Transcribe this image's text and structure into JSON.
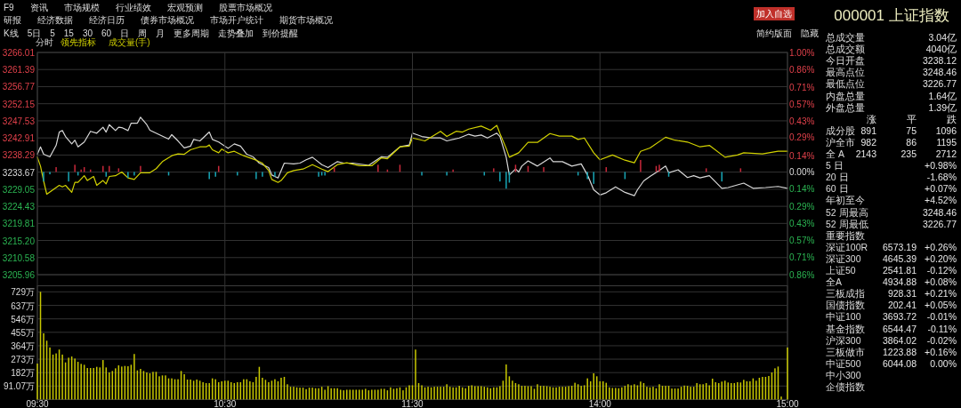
{
  "chart_data": [
    {
      "type": "other",
      "annotations": [
        "F9\t资讯\t市场规模\t行业绩效\t宏观预测\t股票市场概况",
        "研报\t经济数据\t经济日历\t债券市场概况\t市场开户统计\t期货市场概况",
        "K线\t5日\t5\t15\t30\t60\t日\t周\t月\t更多周期\t走势叠加\t到价提醒",
        "简约版面\t隐藏",
        "加入自选"
      ]
    },
    {
      "type": "line",
      "categories": [
        null,
        null,
        null,
        null,
        null,
        null,
        null,
        null,
        null,
        null,
        null,
        null,
        null,
        null,
        null,
        null,
        null,
        null,
        null,
        null,
        null,
        null,
        null,
        null,
        null,
        null,
        null,
        null,
        null,
        null,
        null,
        null,
        null,
        null,
        null,
        null,
        null,
        null,
        null,
        null,
        null,
        null,
        null,
        null,
        null,
        null,
        null,
        null,
        null,
        null,
        null,
        null,
        null,
        null,
        null,
        null,
        null,
        null,
        null,
        null,
        null,
        null,
        null,
        null,
        null,
        null,
        null,
        null,
        null,
        null,
        null,
        null,
        null,
        null,
        null,
        null,
        null,
        null,
        null,
        null,
        null,
        null,
        null,
        null,
        null,
        null,
        null,
        null,
        null,
        null,
        null,
        null,
        null,
        null,
        null,
        null,
        null,
        null,
        null,
        null,
        null,
        null,
        null,
        null,
        null,
        null,
        null,
        null,
        null,
        null,
        null,
        null,
        null,
        null,
        null,
        null,
        null,
        null,
        null,
        null,
        null,
        null,
        null,
        null,
        null,
        null,
        null,
        null,
        null,
        null,
        null,
        null,
        null,
        null,
        null,
        null,
        null,
        null,
        null,
        null,
        null,
        null,
        null,
        null,
        null,
        null,
        null,
        null,
        null,
        null,
        null,
        null,
        null,
        null,
        null,
        null,
        null,
        null,
        null,
        null,
        null,
        null,
        null,
        null,
        null,
        null,
        null,
        null,
        null,
        null,
        null,
        null,
        null,
        null,
        null,
        null,
        null,
        null,
        null,
        null,
        null,
        null,
        null,
        null,
        null,
        null,
        null,
        null,
        null,
        null,
        null,
        null,
        null,
        null,
        null,
        null,
        null,
        null,
        null,
        null,
        null,
        null,
        null,
        null,
        null,
        null,
        null,
        null,
        null,
        null,
        null,
        null,
        null,
        null,
        null,
        null,
        null,
        null,
        null,
        null,
        null,
        null,
        null,
        null,
        null,
        null,
        null,
        null,
        null,
        null,
        null,
        null,
        null,
        null,
        null,
        null,
        null,
        null,
        null,
        null,
        null
      ],
      "ylim": [
        3205.96,
        3266.01
      ],
      "yticks": [
        3266.01,
        3261.39,
        3256.77,
        3252.15,
        3247.53,
        3242.91,
        3238.29,
        3233.67,
        3229.05,
        3224.43,
        3219.81,
        {
          "value": 3215.2,
          "label": "3215.20"
        },
        3210.58,
        3205.96
      ],
      "y2lim": [
        -0.86,
        1.0
      ],
      "y2ticks": [
        {
          "value": 1.0,
          "label": "1.00%"
        },
        {
          "value": 0.86,
          "label": "0.86%"
        },
        {
          "value": 0.71,
          "label": "0.71%"
        },
        {
          "value": 0.57,
          "label": "0.57%"
        },
        {
          "value": 0.43,
          "label": "0.43%"
        },
        {
          "value": 0.29,
          "label": "0.29%"
        },
        {
          "value": 0.14,
          "label": "0.14%"
        },
        {
          "value": 0,
          "label": "0.00%"
        },
        {
          "value": -0.14,
          "label": "0.14%"
        },
        {
          "value": -0.29,
          "label": "0.29%"
        },
        {
          "value": -0.43,
          "label": "0.43%"
        },
        {
          "value": -0.57,
          "label": "0.57%"
        },
        {
          "value": -0.71,
          "label": "0.71%"
        },
        {
          "value": -0.86,
          "label": "0.86%"
        }
      ],
      "grid": true,
      "legend": "top left",
      "series": [
        {
          "name": "分时",
          "color": "#d8d8d8",
          "values": [
            3238.5,
            3240.5,
            3238.5,
            null,
            3237.8,
            null,
            3240.9,
            3244.5,
            3244.9,
            3243.3,
            null,
            3241.3,
            3242.3,
            3240.5,
            null,
            3241.8,
            null,
            3244.7,
            null,
            3244.2,
            null,
            3245.8,
            3244.5,
            3246.5,
            null,
            3244.9,
            3245.8,
            3245.7,
            null,
            3244.9,
            3246.9,
            null,
            3246.9,
            3248.5,
            null,
            3246.5,
            3245.0,
            null,
            null,
            3243.8,
            null,
            null,
            3242.6,
            3243.8,
            null,
            3242.1,
            null,
            3240.2,
            null,
            3240.7,
            3242.5,
            null,
            3242.1,
            3242.9,
            null,
            3244.5,
            3242.5,
            null,
            3241.8,
            null,
            null,
            3240.1,
            null,
            3241.3,
            null,
            3240.7,
            null,
            3238.5,
            null,
            3237.8,
            null,
            3236.1,
            null,
            null,
            3234.9,
            3232.9,
            null,
            3232.1,
            null,
            3236.1,
            null,
            null,
            3235.9,
            null,
            3236.1,
            null,
            3237.0,
            null,
            3237.7,
            null,
            null,
            3235.7,
            null,
            3234.9,
            null,
            null,
            3236.5,
            null,
            3236.1,
            null,
            null,
            3236.1,
            null,
            null,
            null,
            null,
            3235.5,
            null,
            null,
            null,
            3237.8,
            null,
            3237.7,
            null,
            null,
            null,
            3240.5,
            null,
            null,
            3241.0,
            3244.2,
            null,
            null,
            3243.3,
            null,
            null,
            3242.9,
            null,
            null,
            3242.9,
            null,
            3242.1,
            null,
            null,
            null,
            3242.9,
            null,
            null,
            3243.9,
            null,
            3243.4,
            null,
            3243.7,
            null,
            3242.9,
            null,
            null,
            3244.2,
            3243.3,
            null,
            3237.7,
            3232.9,
            null,
            3234.5,
            3233.7,
            3235.3,
            null,
            3236.7,
            null,
            null,
            3235.3,
            null,
            null,
            null,
            3237.5,
            3236.5,
            null,
            null,
            3236.5,
            null,
            null,
            3235.3,
            null,
            null,
            3235.9,
            null,
            3232.9,
            null,
            3228.9,
            null,
            3227.5,
            null,
            3228.1,
            null,
            null,
            3229.7,
            null,
            null,
            3228.2,
            null,
            null,
            3227.3,
            3228.9,
            null,
            3231.3,
            null,
            3232.5,
            null,
            null,
            3234.1,
            null,
            3235.3,
            3233.5,
            null,
            null,
            3234.3,
            null,
            null,
            3232.2,
            null,
            3232.7,
            null,
            3232.1,
            null,
            null,
            3232.7,
            null,
            null,
            null,
            3229.3,
            null,
            3229.5,
            null,
            null,
            null,
            null,
            3230.7,
            null,
            null,
            3229.3,
            null,
            null,
            null,
            3229.5,
            null,
            null,
            null,
            3229.8,
            null,
            null,
            3229.3
          ]
        },
        {
          "name": "领先指标",
          "color": "#d2d200",
          "values": [
            3237.7,
            3235.3,
            3231.3,
            3227.7,
            null,
            3228.9,
            null,
            3230.1,
            3229.7,
            3230.1,
            null,
            3228.2,
            3230.9,
            3230.9,
            null,
            3232.7,
            3231.4,
            null,
            3232.5,
            3230.1,
            null,
            3231.4,
            3230.5,
            3232.5,
            null,
            3232.7,
            null,
            3233.7,
            null,
            3232.1,
            null,
            3231.7,
            null,
            3233.5,
            null,
            null,
            3233.5,
            null,
            3234.6,
            null,
            3236.5,
            null,
            null,
            3238.1,
            null,
            3238.6,
            null,
            3238.5,
            null,
            3239.7,
            null,
            null,
            3240.5,
            null,
            3240.5,
            3241.0,
            3239.7,
            null,
            3238.9,
            3239.9,
            null,
            3238.9,
            null,
            3239.3,
            null,
            null,
            3238.1,
            null,
            null,
            null,
            3236.9,
            null,
            3236.1,
            null,
            3234.1,
            3231.7,
            null,
            3230.9,
            3231.4,
            null,
            3233.5,
            null,
            3234.1,
            null,
            null,
            3234.5,
            null,
            null,
            3235.7,
            null,
            null,
            3234.5,
            null,
            3233.8,
            null,
            null,
            3235.7,
            null,
            null,
            3236.2,
            null,
            null,
            null,
            3235.4,
            null,
            null,
            null,
            3235.4,
            null,
            null,
            3237.5,
            null,
            3237.3,
            null,
            null,
            null,
            3240.5,
            null,
            null,
            3240.7,
            3242.9,
            null,
            null,
            null,
            3242.1,
            null,
            null,
            null,
            null,
            3244.7,
            null,
            3243.3,
            null,
            null,
            3244.7,
            null,
            3244.5,
            null,
            3245.3,
            null,
            null,
            null,
            3246.1,
            null,
            null,
            3245.0,
            null,
            3246.3,
            3244.1,
            null,
            3240.1,
            3237.7,
            null,
            null,
            3238.9,
            null,
            null,
            3241.7,
            null,
            null,
            3241.7,
            null,
            null,
            null,
            3244.1,
            null,
            null,
            3243.4,
            null,
            null,
            null,
            3243.4,
            null,
            3242.5,
            null,
            3242.9,
            null,
            null,
            3238.9,
            null,
            3237.0,
            null,
            null,
            null,
            3238.3,
            null,
            null,
            null,
            3236.9,
            null,
            null,
            3236.2,
            null,
            3239.3,
            null,
            null,
            3240.2,
            null,
            null,
            null,
            null,
            3243.1,
            null,
            null,
            3242.3,
            null,
            null,
            null,
            3241.8,
            null,
            null,
            null,
            3240.5,
            null,
            null,
            3240.9,
            null,
            null,
            null,
            null,
            3237.7,
            null,
            null,
            null,
            3238.3,
            null,
            3238.9,
            null,
            null,
            null,
            null,
            null,
            3238.6,
            null,
            null,
            null,
            null,
            3239.3,
            null,
            null,
            3239.3
          ]
        },
        {
          "type": "bar",
          "axis": "y2",
          "color": "#c8283a",
          "values": [
            null,
            null,
            null,
            null,
            null,
            null,
            0.04,
            null,
            null,
            null,
            null,
            null,
            0.06,
            null,
            0.02,
            0.04,
            null,
            0.02,
            null,
            null,
            null,
            0.05,
            null,
            0.05,
            null,
            null,
            0.03,
            null,
            null,
            null,
            null,
            null,
            null,
            0.05,
            null,
            null,
            null,
            null,
            null,
            null,
            null,
            null,
            null,
            null,
            null,
            null,
            null,
            null,
            null,
            null,
            null,
            null,
            null,
            null,
            null,
            null,
            null,
            null,
            0.05,
            null,
            null,
            null,
            null,
            null,
            null,
            null,
            null,
            null,
            null,
            null,
            null,
            null,
            null,
            null,
            null,
            null,
            null,
            null,
            null,
            null,
            null,
            null,
            null,
            null,
            null,
            null,
            null,
            null,
            null,
            null,
            null,
            null,
            null,
            null,
            null,
            0.04,
            null,
            null,
            null,
            null,
            null,
            null,
            null,
            null,
            null,
            null,
            null,
            null,
            null,
            0.06,
            null,
            null,
            0.02,
            null,
            null,
            null,
            0.06,
            null,
            null,
            null,
            null,
            null,
            null,
            null,
            null,
            null,
            null,
            null,
            null,
            null,
            null,
            null,
            null,
            0.02,
            null,
            null,
            null,
            null,
            null,
            null,
            null,
            null,
            null,
            null,
            null,
            null,
            0.03,
            null,
            null,
            null,
            null,
            null,
            null,
            0.06,
            null,
            null,
            null,
            0.05,
            null,
            null,
            null,
            null,
            0.04,
            null,
            null,
            null,
            null,
            null,
            null,
            null,
            null,
            null,
            null,
            null,
            null,
            null,
            null,
            null,
            null,
            null,
            null,
            null,
            0.04,
            null,
            null,
            null,
            null,
            null,
            null,
            null,
            null,
            null,
            null,
            0.1,
            null,
            null,
            null,
            null,
            0.05,
            0.06,
            null,
            null,
            null,
            null,
            null,
            null,
            null,
            null,
            null,
            null,
            null,
            null,
            null,
            null,
            0.03,
            null,
            null,
            null,
            null,
            null,
            null,
            null,
            null,
            null,
            null,
            0.03,
            null,
            null,
            null,
            null,
            null,
            null,
            null,
            null,
            null,
            null,
            null,
            null,
            null,
            null,
            null
          ]
        },
        {
          "type": "bar",
          "axis": "y2",
          "color": "#17a5b5",
          "values": [
            null,
            null,
            -0.08,
            null,
            -0.02,
            null,
            null,
            null,
            null,
            null,
            -0.08,
            null,
            null,
            -0.03,
            null,
            null,
            null,
            null,
            null,
            null,
            null,
            null,
            -0.04,
            null,
            null,
            null,
            null,
            null,
            null,
            -0.05,
            null,
            -0.03,
            null,
            null,
            null,
            null,
            null,
            null,
            null,
            null,
            null,
            null,
            -0.03,
            null,
            null,
            null,
            null,
            null,
            null,
            null,
            null,
            null,
            null,
            null,
            null,
            -0.06,
            null,
            -0.04,
            null,
            null,
            null,
            null,
            null,
            null,
            -0.03,
            null,
            null,
            null,
            null,
            null,
            -0.06,
            null,
            -0.04,
            null,
            null,
            null,
            -0.04,
            null,
            null,
            null,
            null,
            null,
            null,
            null,
            null,
            null,
            null,
            null,
            null,
            null,
            -0.04,
            -0.03,
            -0.03,
            null,
            null,
            null,
            null,
            null,
            null,
            null,
            null,
            null,
            null,
            null,
            null,
            null,
            null,
            null,
            null,
            null,
            null,
            null,
            null,
            null,
            null,
            null,
            null,
            null,
            null,
            null,
            null,
            null,
            null,
            -0.03,
            null,
            null,
            null,
            null,
            null,
            null,
            null,
            -0.03,
            null,
            null,
            null,
            null,
            null,
            null,
            null,
            null,
            null,
            null,
            null,
            -0.03,
            null,
            null,
            null,
            null,
            -0.08,
            null,
            -0.14,
            -0.09,
            null,
            null,
            null,
            null,
            null,
            null,
            null,
            null,
            null,
            null,
            null,
            null,
            null,
            null,
            null,
            null,
            null,
            null,
            null,
            null,
            null,
            -0.03,
            null,
            null,
            -0.06,
            null,
            -0.1,
            null,
            null,
            null,
            null,
            null,
            null,
            null,
            null,
            null,
            -0.06,
            null,
            null,
            null,
            null,
            null,
            null,
            null,
            null,
            null,
            null,
            null,
            null,
            null,
            -0.04,
            null,
            null,
            null,
            null,
            null,
            null,
            null,
            null,
            null,
            null,
            null,
            null,
            null,
            null,
            null,
            null,
            -0.08,
            null,
            null,
            null,
            null,
            null,
            null,
            null,
            null,
            null,
            null,
            null,
            null,
            null,
            null,
            null,
            null,
            null,
            null,
            null,
            null,
            null
          ]
        }
      ]
    },
    {
      "type": "bar",
      "categories": [
        "09:30",
        null,
        null,
        null,
        null,
        null,
        null,
        null,
        null,
        null,
        null,
        null,
        null,
        null,
        null,
        null,
        null,
        null,
        null,
        null,
        null,
        null,
        null,
        null,
        null,
        null,
        null,
        null,
        null,
        null,
        null,
        null,
        null,
        null,
        null,
        null,
        null,
        null,
        null,
        null,
        null,
        null,
        null,
        null,
        null,
        null,
        null,
        null,
        null,
        null,
        null,
        null,
        null,
        null,
        null,
        null,
        null,
        null,
        null,
        null,
        "10:30",
        null,
        null,
        null,
        null,
        null,
        null,
        null,
        null,
        null,
        null,
        null,
        null,
        null,
        null,
        null,
        null,
        null,
        null,
        null,
        null,
        null,
        null,
        null,
        null,
        null,
        null,
        null,
        null,
        null,
        null,
        null,
        null,
        null,
        null,
        null,
        null,
        null,
        null,
        null,
        null,
        null,
        null,
        null,
        null,
        null,
        null,
        null,
        null,
        null,
        null,
        null,
        null,
        null,
        null,
        null,
        null,
        null,
        null,
        null,
        "11:30",
        null,
        null,
        null,
        null,
        null,
        null,
        null,
        null,
        null,
        null,
        null,
        null,
        null,
        null,
        null,
        null,
        null,
        null,
        null,
        null,
        null,
        null,
        null,
        null,
        null,
        null,
        null,
        null,
        null,
        null,
        null,
        null,
        null,
        null,
        null,
        null,
        null,
        null,
        null,
        null,
        null,
        null,
        null,
        null,
        null,
        null,
        null,
        null,
        null,
        null,
        null,
        null,
        null,
        null,
        null,
        null,
        null,
        null,
        null,
        "14:00",
        null,
        null,
        null,
        null,
        null,
        null,
        null,
        null,
        null,
        null,
        null,
        null,
        null,
        null,
        null,
        null,
        null,
        null,
        null,
        null,
        null,
        null,
        null,
        null,
        null,
        null,
        null,
        null,
        null,
        null,
        null,
        null,
        null,
        null,
        null,
        null,
        null,
        null,
        null,
        null,
        null,
        null,
        null,
        null,
        null,
        null,
        null,
        null,
        null,
        null,
        null,
        null,
        null,
        null,
        null,
        null,
        null,
        null,
        null,
        "15:00"
      ],
      "ylim": [
        0,
        770
      ],
      "yticks": [
        {
          "value": 91.07,
          "label": "91.07万"
        },
        {
          "value": 182,
          "label": "182万"
        },
        {
          "value": 273,
          "label": "273万"
        },
        {
          "value": 364,
          "label": "364万"
        },
        {
          "value": 455,
          "label": "455万"
        },
        {
          "value": 546,
          "label": "546万"
        },
        {
          "value": 637,
          "label": "637万"
        },
        {
          "value": 729,
          "label": "729万"
        }
      ],
      "grid": true,
      "legend": "top left",
      "series": [
        {
          "name": "成交量(手)",
          "color": "#c8c800",
          "values": [
            243,
            729,
            448,
            398,
            352,
            304,
            312,
            338,
            304,
            251,
            283,
            291,
            277,
            255,
            241,
            235,
            213,
            213,
            213,
            221,
            217,
            267,
            217,
            183,
            193,
            211,
            231,
            223,
            227,
            225,
            235,
            308,
            197,
            207,
            193,
            183,
            177,
            187,
            187,
            157,
            163,
            163,
            143,
            143,
            137,
            137,
            193,
            171,
            135,
            135,
            127,
            135,
            127,
            117,
            111,
            111,
            143,
            137,
            117,
            123,
            127,
            127,
            117,
            111,
            117,
            117,
            137,
            137,
            123,
            117,
            153,
            221,
            147,
            133,
            117,
            127,
            137,
            123,
            147,
            153,
            103,
            86,
            86,
            82,
            80,
            80,
            70,
            80,
            80,
            76,
            76,
            86,
            66,
            90,
            76,
            76,
            76,
            66,
            62,
            66,
            66,
            66,
            66,
            66,
            66,
            72,
            62,
            66,
            66,
            66,
            72,
            72,
            62,
            82,
            72,
            76,
            82,
            62,
            82,
            96,
            96,
            338,
            111,
            96,
            82,
            86,
            82,
            86,
            86,
            86,
            86,
            103,
            86,
            82,
            82,
            92,
            82,
            76,
            92,
            96,
            90,
            90,
            90,
            86,
            82,
            76,
            82,
            82,
            90,
            127,
            237,
            157,
            127,
            111,
            103,
            92,
            92,
            90,
            90,
            72,
            103,
            92,
            92,
            90,
            86,
            82,
            82,
            86,
            86,
            86,
            90,
            92,
            113,
            103,
            92,
            96,
            143,
            123,
            177,
            157,
            123,
            123,
            113,
            82,
            78,
            78,
            76,
            82,
            92,
            103,
            96,
            103,
            96,
            121,
            111,
            86,
            82,
            86,
            76,
            103,
            92,
            92,
            92,
            74,
            74,
            74,
            86,
            94,
            92,
            86,
            86,
            111,
            103,
            103,
            111,
            96,
            141,
            117,
            111,
            121,
            127,
            115,
            111,
            111,
            117,
            115,
            133,
            123,
            123,
            143,
            127,
            147,
            153,
            153,
            159,
            183,
            211,
            223,
            20,
            0,
            352
          ]
        }
      ]
    },
    {
      "type": "other",
      "title": "000001 上证指数",
      "annotations": [
        "总成交量\t3.04亿",
        "总成交额\t4040亿",
        "今日开盘\t3238.12",
        "最高点位\t3248.46",
        "最低点位\t3226.77",
        "内盘总量\t1.64亿",
        "外盘总量\t1.39亿",
        "\t涨\t平\t跌",
        "成分股\t891\t75\t1096",
        "沪全市\t982\t86\t1195",
        "全 A\t2143\t235\t2712",
        "5 日\t+0.98%",
        "20 日\t-1.68%",
        "60 日\t+0.07%",
        "年初至今\t+4.52%",
        "52 周最高\t3248.46",
        "52 周最低\t3226.77",
        "重要指数",
        "深证100R\t6573.19\t+0.26%",
        "深证300\t4645.39\t+0.20%",
        "上证50\t2541.81\t-0.12%",
        "全A\t4934.88\t+0.08%",
        "三板成指\t928.31\t+0.21%",
        "国债指数\t202.41\t+0.05%",
        "中证100\t3693.72\t-0.01%",
        "基金指数\t6544.47\t-0.11%",
        "沪深300\t3864.02\t-0.02%",
        "三板做市\t1223.88\t+0.16%",
        "中证500\t6044.08\t0.00%",
        "中小300",
        "企债指数"
      ]
    }
  ]
}
